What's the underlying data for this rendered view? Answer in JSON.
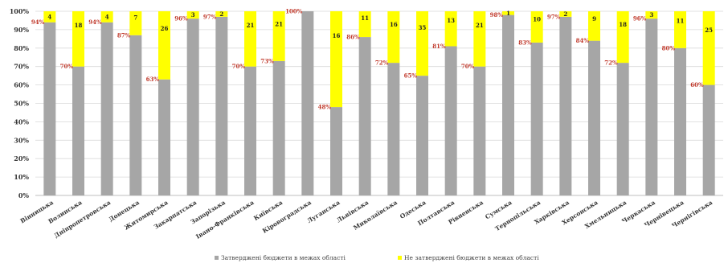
{
  "chart_data": {
    "type": "bar",
    "stacked": true,
    "title": "",
    "xlabel": "",
    "ylabel": "",
    "ylim": [
      0,
      100
    ],
    "y_ticks": [
      "0%",
      "10%",
      "20%",
      "30%",
      "40%",
      "50%",
      "60%",
      "70%",
      "80%",
      "90%",
      "100%"
    ],
    "legend_position": "bottom",
    "categories": [
      "Вінницька",
      "Волинська",
      "Дніпропетровська",
      "Донецька",
      "Житомирська",
      "Закарпатська",
      "Запорізька",
      "Івано-Франківська",
      "Київська",
      "Кіровоградська",
      "Луганська",
      "Львівська",
      "Миколаївська",
      "Одеська",
      "Полтавська",
      "Рівненська",
      "Сумська",
      "Тернопільська",
      "Харківська",
      "Херсонська",
      "Хмельницька",
      "Черкаська",
      "Чернівецька",
      "Чернігівська"
    ],
    "series": [
      {
        "name": "Затверджені бюджети в межах області",
        "color": "#a6a6a6",
        "values": [
          94,
          70,
          94,
          87,
          63,
          96,
          97,
          70,
          73,
          100,
          48,
          86,
          72,
          65,
          81,
          70,
          98,
          83,
          97,
          84,
          72,
          96,
          80,
          60
        ],
        "labels": [
          "94%",
          "70%",
          "94%",
          "87%",
          "63%",
          "96%",
          "97%",
          "70%",
          "73%",
          "100%",
          "48%",
          "86%",
          "72%",
          "65%",
          "81%",
          "70%",
          "98%",
          "83%",
          "97%",
          "84%",
          "72%",
          "96%",
          "80%",
          "60%"
        ]
      },
      {
        "name": "Не затверджені бюджети в межах області",
        "color": "#ffff00",
        "values": [
          6,
          30,
          6,
          13,
          37,
          4,
          3,
          30,
          27,
          0,
          52,
          14,
          28,
          35,
          19,
          30,
          2,
          17,
          3,
          16,
          28,
          4,
          20,
          40
        ],
        "counts": [
          "4",
          "18",
          "4",
          "7",
          "26",
          "3",
          "2",
          "21",
          "21",
          "",
          "16",
          "11",
          "16",
          "35",
          "13",
          "21",
          "1",
          "10",
          "2",
          "9",
          "18",
          "3",
          "11",
          "25"
        ]
      }
    ]
  }
}
